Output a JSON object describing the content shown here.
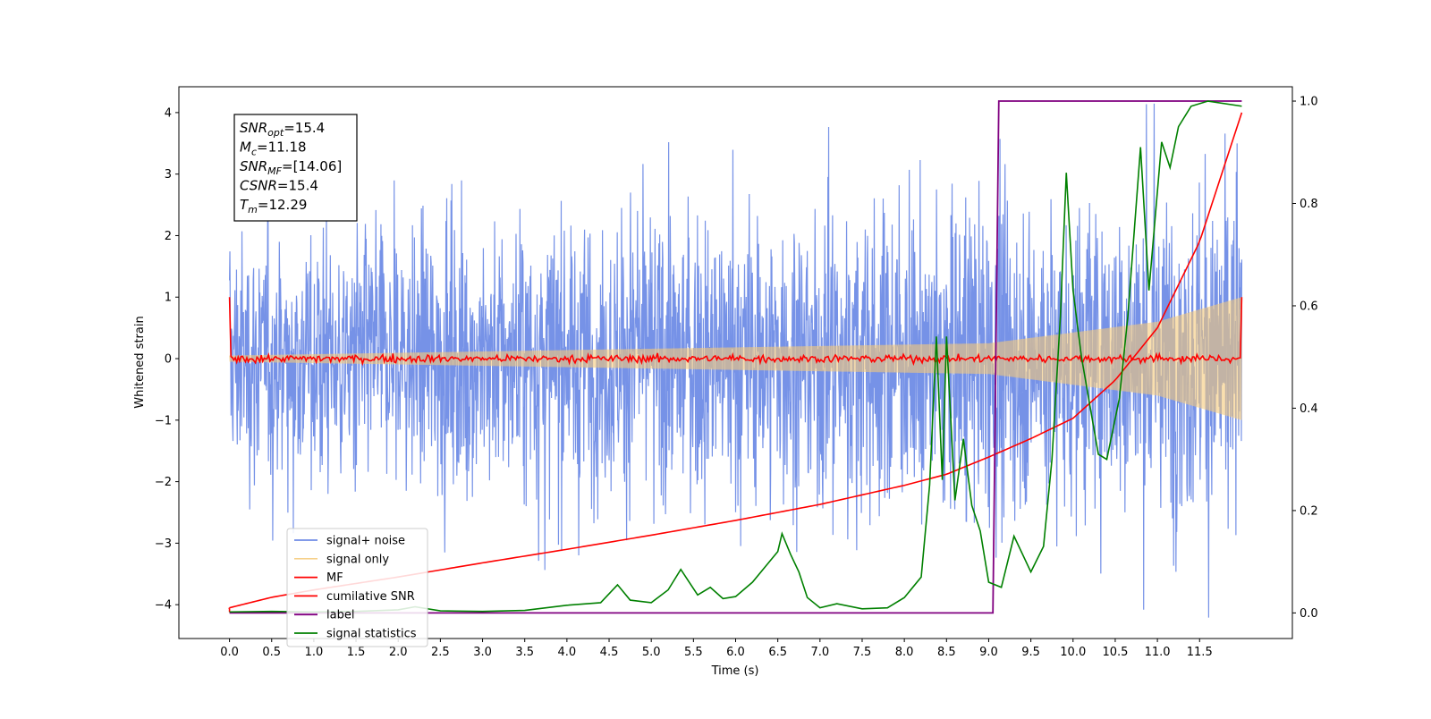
{
  "chart_data": {
    "type": "line",
    "xlabel": "Time (s)",
    "ylabel": "Whitened strain",
    "xlim": [
      -0.6,
      12.6
    ],
    "ylim": [
      -4.55,
      4.42
    ],
    "y2lim": [
      -0.05,
      1.028
    ],
    "x_ticks": [
      0.0,
      0.5,
      1.0,
      1.5,
      2.0,
      2.5,
      3.0,
      3.5,
      4.0,
      4.5,
      5.0,
      5.5,
      6.0,
      6.5,
      7.0,
      7.5,
      8.0,
      8.5,
      9.0,
      9.5,
      10.0,
      10.5,
      11.0,
      11.5
    ],
    "x_tick_labels": [
      "0.0",
      "0.5",
      "1.0",
      "1.5",
      "2.0",
      "2.5",
      "3.0",
      "3.5",
      "4.0",
      "4.5",
      "5.0",
      "5.5",
      "6.0",
      "6.5",
      "7.0",
      "7.5",
      "8.0",
      "8.5",
      "9.0",
      "9.5",
      "10.0",
      "10.5",
      "11.0",
      "11.5"
    ],
    "y_ticks": [
      -4,
      -3,
      -2,
      -1,
      0,
      1,
      2,
      3,
      4
    ],
    "y_tick_labels": [
      "−4",
      "−3",
      "−2",
      "−1",
      "0",
      "1",
      "2",
      "3",
      "4"
    ],
    "y2_ticks": [
      0.0,
      0.2,
      0.4,
      0.6,
      0.8,
      1.0
    ],
    "y2_tick_labels": [
      "0.0",
      "0.2",
      "0.4",
      "0.6",
      "0.8",
      "1.0"
    ],
    "legend_position": "bottom-left",
    "colors": {
      "signal_noise": "#6f8ce6",
      "signal_only": "#f5c97a",
      "mf": "#ff0000",
      "cumulative_snr": "#ff0000",
      "label": "#800080",
      "signal_statistics": "#008000"
    },
    "stats_box": [
      {
        "sym": "SNR",
        "sub": "opt",
        "val": "=15.4"
      },
      {
        "sym": "M",
        "sub": "c",
        "val": "=11.18"
      },
      {
        "sym": "SNR",
        "sub": "MF",
        "val": "=[14.06]"
      },
      {
        "sym": "CSNR",
        "sub": "",
        "val": "=15.4"
      },
      {
        "sym": "T",
        "sub": "m",
        "val": "=12.29"
      }
    ],
    "series": [
      {
        "name": "signal+ noise",
        "axis": "left",
        "kind": "noise",
        "x_range": [
          0.0,
          12.0
        ],
        "amplitude_envelope": [
          [
            0.0,
            2.6
          ],
          [
            12.0,
            3.6
          ]
        ]
      },
      {
        "name": "signal only",
        "axis": "left",
        "kind": "chirp",
        "x_range": [
          0.0,
          12.0
        ],
        "envelope": [
          [
            0.0,
            0.05
          ],
          [
            9.0,
            0.25
          ],
          [
            11.0,
            0.6
          ],
          [
            12.0,
            1.0
          ]
        ]
      },
      {
        "name": "MF",
        "axis": "left",
        "kind": "noise",
        "x_range": [
          0.0,
          12.0
        ],
        "start": 1.0,
        "end": 1.0,
        "amplitude": 0.08
      },
      {
        "name": "cumilative SNR",
        "axis": "left",
        "kind": "curve",
        "points": [
          [
            0.0,
            -4.05
          ],
          [
            0.5,
            -3.88
          ],
          [
            1.0,
            -3.76
          ],
          [
            2.0,
            -3.55
          ],
          [
            3.0,
            -3.32
          ],
          [
            4.0,
            -3.1
          ],
          [
            5.0,
            -2.87
          ],
          [
            6.0,
            -2.63
          ],
          [
            7.0,
            -2.37
          ],
          [
            8.0,
            -2.06
          ],
          [
            8.5,
            -1.88
          ],
          [
            9.0,
            -1.6
          ],
          [
            9.5,
            -1.3
          ],
          [
            10.0,
            -0.97
          ],
          [
            10.5,
            -0.35
          ],
          [
            11.0,
            0.5
          ],
          [
            11.5,
            1.9
          ],
          [
            12.0,
            4.0
          ]
        ]
      },
      {
        "name": "label",
        "axis": "right",
        "kind": "step",
        "points": [
          [
            0.0,
            0.0
          ],
          [
            9.05,
            0.0
          ],
          [
            9.12,
            1.0
          ],
          [
            12.0,
            1.0
          ]
        ]
      },
      {
        "name": "signal statistics",
        "axis": "right",
        "kind": "curve",
        "points": [
          [
            0.0,
            0.002
          ],
          [
            0.5,
            0.003
          ],
          [
            1.0,
            0.002
          ],
          [
            1.5,
            0.003
          ],
          [
            2.0,
            0.006
          ],
          [
            2.2,
            0.012
          ],
          [
            2.5,
            0.004
          ],
          [
            3.0,
            0.003
          ],
          [
            3.5,
            0.005
          ],
          [
            4.0,
            0.015
          ],
          [
            4.4,
            0.02
          ],
          [
            4.6,
            0.055
          ],
          [
            4.75,
            0.025
          ],
          [
            5.0,
            0.02
          ],
          [
            5.2,
            0.045
          ],
          [
            5.35,
            0.085
          ],
          [
            5.45,
            0.06
          ],
          [
            5.55,
            0.035
          ],
          [
            5.7,
            0.05
          ],
          [
            5.85,
            0.028
          ],
          [
            6.0,
            0.032
          ],
          [
            6.2,
            0.06
          ],
          [
            6.35,
            0.09
          ],
          [
            6.5,
            0.12
          ],
          [
            6.55,
            0.155
          ],
          [
            6.65,
            0.115
          ],
          [
            6.75,
            0.08
          ],
          [
            6.85,
            0.03
          ],
          [
            7.0,
            0.01
          ],
          [
            7.2,
            0.018
          ],
          [
            7.5,
            0.008
          ],
          [
            7.8,
            0.01
          ],
          [
            8.0,
            0.03
          ],
          [
            8.2,
            0.07
          ],
          [
            8.3,
            0.25
          ],
          [
            8.38,
            0.54
          ],
          [
            8.45,
            0.26
          ],
          [
            8.5,
            0.54
          ],
          [
            8.6,
            0.22
          ],
          [
            8.7,
            0.34
          ],
          [
            8.8,
            0.21
          ],
          [
            8.9,
            0.16
          ],
          [
            9.0,
            0.06
          ],
          [
            9.15,
            0.05
          ],
          [
            9.3,
            0.15
          ],
          [
            9.5,
            0.08
          ],
          [
            9.65,
            0.13
          ],
          [
            9.75,
            0.3
          ],
          [
            9.85,
            0.58
          ],
          [
            9.92,
            0.86
          ],
          [
            10.0,
            0.63
          ],
          [
            10.1,
            0.5
          ],
          [
            10.3,
            0.31
          ],
          [
            10.4,
            0.3
          ],
          [
            10.55,
            0.42
          ],
          [
            10.65,
            0.58
          ],
          [
            10.8,
            0.91
          ],
          [
            10.9,
            0.63
          ],
          [
            11.05,
            0.92
          ],
          [
            11.15,
            0.87
          ],
          [
            11.25,
            0.95
          ],
          [
            11.4,
            0.99
          ],
          [
            11.6,
            1.0
          ],
          [
            12.0,
            0.99
          ]
        ]
      }
    ]
  }
}
